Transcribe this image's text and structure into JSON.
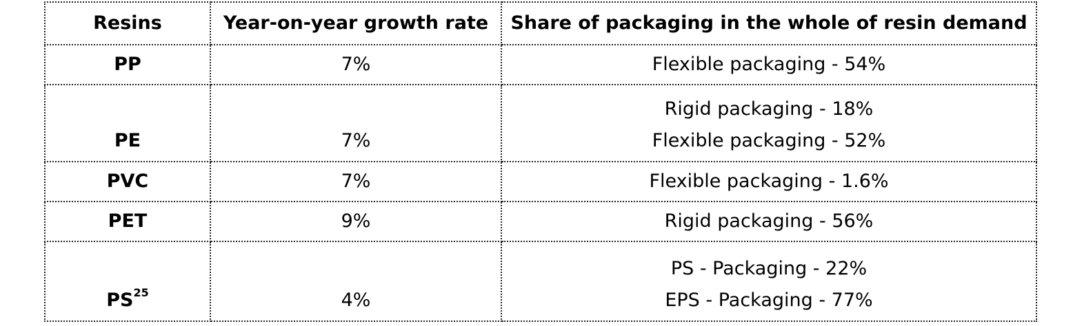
{
  "table": {
    "headers": {
      "resins": "Resins",
      "growth": "Year-on-year growth rate",
      "share": "Share of packaging in the whole of resin demand"
    },
    "rows": [
      {
        "resin": "PP",
        "resin_sup": "",
        "growth": "7%",
        "share": [
          "Flexible packaging - 54%"
        ]
      },
      {
        "resin": "PE",
        "resin_sup": "",
        "growth": "7%",
        "share": [
          "Rigid packaging - 18%",
          "Flexible packaging - 52%"
        ]
      },
      {
        "resin": "PVC",
        "resin_sup": "",
        "growth": "7%",
        "share": [
          "Flexible packaging - 1.6%"
        ]
      },
      {
        "resin": "PET",
        "resin_sup": "",
        "growth": "9%",
        "share": [
          "Rigid packaging - 56%"
        ]
      },
      {
        "resin": "PS",
        "resin_sup": "25",
        "growth": "4%",
        "share": [
          "PS - Packaging - 22%",
          "EPS - Packaging - 77%"
        ]
      }
    ]
  }
}
